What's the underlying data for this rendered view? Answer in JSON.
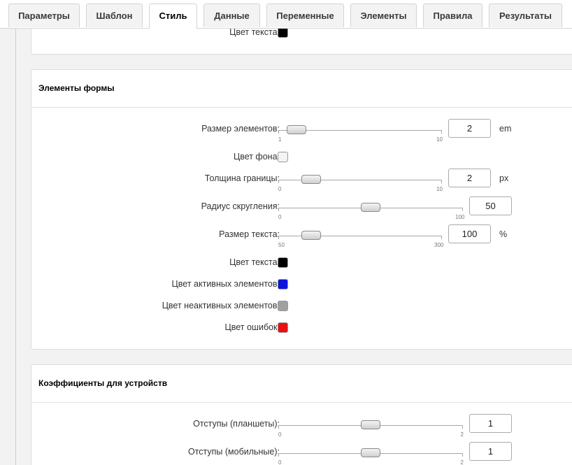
{
  "tabs": [
    {
      "label": "Параметры"
    },
    {
      "label": "Шаблон"
    },
    {
      "label": "Стиль",
      "active": true
    },
    {
      "label": "Данные"
    },
    {
      "label": "Переменные"
    },
    {
      "label": "Элементы"
    },
    {
      "label": "Правила"
    },
    {
      "label": "Результаты"
    }
  ],
  "panels": [
    {
      "fields": [
        {
          "label": "Цвет текста:",
          "type": "color",
          "color": "#000000"
        }
      ]
    },
    {
      "title": "Элементы формы",
      "fields": [
        {
          "label": "Размер элементов:",
          "type": "slider",
          "min": 1,
          "max": 10,
          "value": 2,
          "unit": "em"
        },
        {
          "label": "Цвет фона:",
          "type": "color",
          "color": "#f4f4f4"
        },
        {
          "label": "Толщина границы:",
          "type": "slider",
          "min": 0,
          "max": 10,
          "value": 2,
          "unit": "px"
        },
        {
          "label": "Радиус скругления:",
          "type": "slider",
          "min": 0,
          "max": 100,
          "value": 50
        },
        {
          "label": "Размер текста:",
          "type": "slider",
          "min": 50,
          "max": 300,
          "value": 100,
          "unit": "%"
        },
        {
          "label": "Цвет текста:",
          "type": "color",
          "color": "#000000"
        },
        {
          "label": "Цвет активных элементов:",
          "type": "color",
          "color": "#0a14dc"
        },
        {
          "label": "Цвет неактивных элементов:",
          "type": "color",
          "color": "#a0a0a0"
        },
        {
          "label": "Цвет ошибок:",
          "type": "color",
          "color": "#e81010"
        }
      ]
    },
    {
      "title": "Коэффициенты для устройств",
      "fields": [
        {
          "label": "Отступы (планшеты):",
          "type": "slider",
          "min": 0,
          "max": 2,
          "value": 1
        },
        {
          "label": "Отступы (мобильные):",
          "type": "slider",
          "min": 0,
          "max": 2,
          "value": 1
        }
      ]
    }
  ]
}
